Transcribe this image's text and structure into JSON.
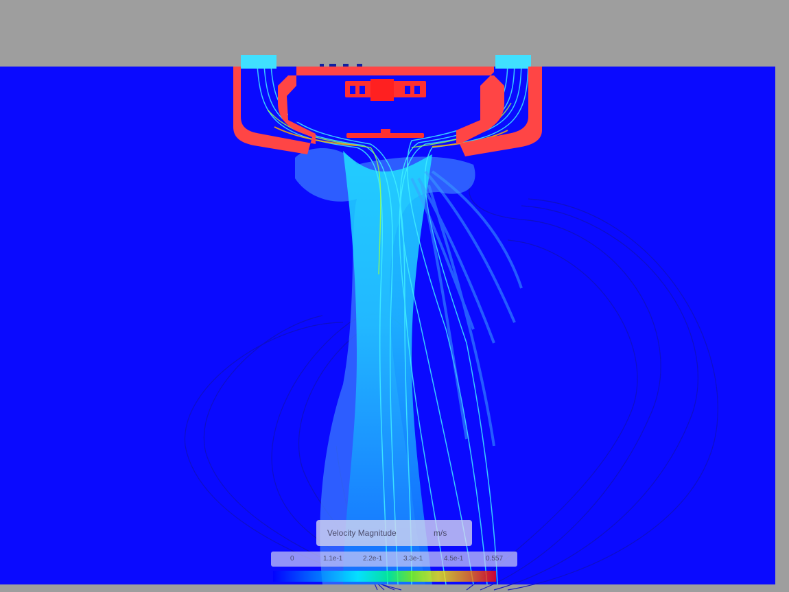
{
  "legend": {
    "title": "Velocity Magnitude",
    "unit": "m/s",
    "ticks": [
      "0",
      "1.1e-1",
      "2.2e-1",
      "3.3e-1",
      "4.5e-1",
      "0.557"
    ],
    "colormap": [
      "#0000ff",
      "#0080ff",
      "#00ffff",
      "#00ff80",
      "#80ff00",
      "#ffff00",
      "#ff8000",
      "#ff0000"
    ]
  },
  "colors": {
    "background": "#9e9e9e",
    "domain": "#0a0aff",
    "solid": "#ff4040",
    "jet": "#00e0ff"
  }
}
